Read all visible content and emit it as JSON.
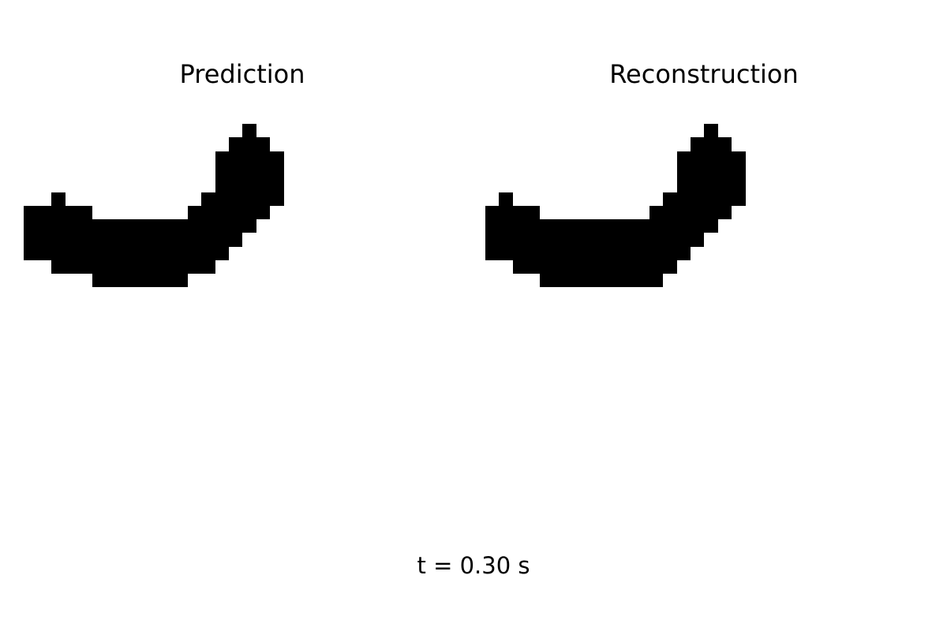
{
  "panels": {
    "left_title": "Prediction",
    "right_title": "Reconstruction"
  },
  "time_label": "t = 0.30 s",
  "colors": {
    "background": "#ffffff",
    "foreground": "#000000"
  }
}
